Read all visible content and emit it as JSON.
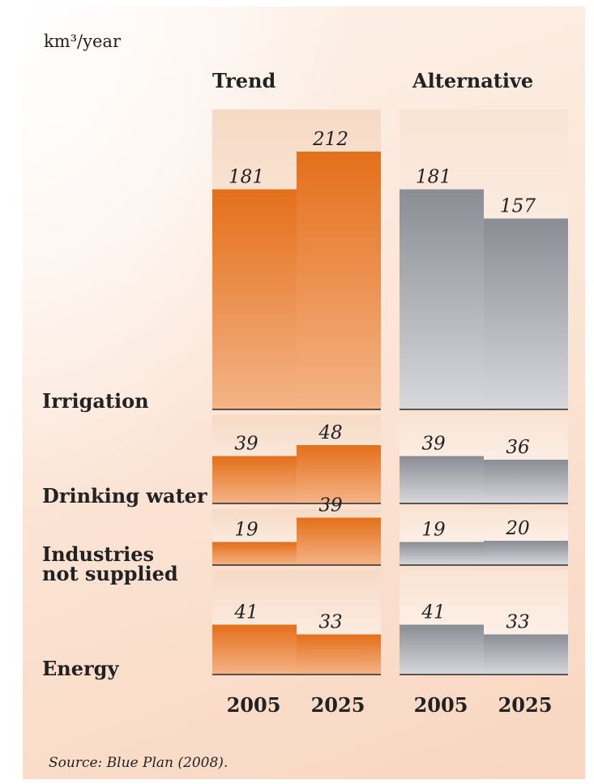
{
  "chart_data": {
    "type": "bar",
    "unit_label": "km³/year",
    "groups": [
      "Trend",
      "Alternative"
    ],
    "years": [
      "2005",
      "2025"
    ],
    "panels": [
      {
        "name": "Irrigation",
        "values": {
          "Trend": [
            181,
            212
          ],
          "Alternative": [
            181,
            157
          ]
        }
      },
      {
        "name": "Drinking water",
        "values": {
          "Trend": [
            39,
            48
          ],
          "Alternative": [
            39,
            36
          ]
        }
      },
      {
        "name": "Industries not supplied",
        "label_lines": [
          "Industries",
          "not supplied"
        ],
        "values": {
          "Trend": [
            19,
            39
          ],
          "Alternative": [
            19,
            20
          ]
        }
      },
      {
        "name": "Energy",
        "values": {
          "Trend": [
            41,
            33
          ],
          "Alternative": [
            41,
            33
          ]
        }
      }
    ],
    "source": "Source: Blue Plan (2008).",
    "colors": {
      "Trend": "#e2701e",
      "Alternative": "#8e9095"
    }
  }
}
